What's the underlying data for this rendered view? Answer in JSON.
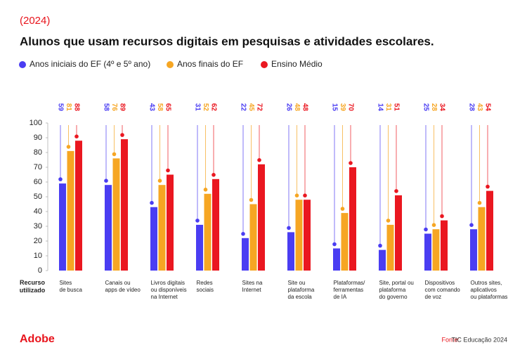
{
  "subtitle": "(2024)",
  "logo": "Adobe",
  "source_label": "Fonte:",
  "source": "TIC Educação 2024",
  "chart_data": {
    "type": "bar",
    "title": "Alunos que usam recursos digitais em pesquisas e atividades escolares.",
    "x_label": [
      "Recurso",
      "utilizado"
    ],
    "categories": [
      [
        "Sites",
        "de busca"
      ],
      [
        "Canais ou",
        "apps de vídeo"
      ],
      [
        "Livros digitais",
        "ou disponíveis",
        "na Internet"
      ],
      [
        "Redes",
        "sociais"
      ],
      [
        "Sites na",
        "Internet"
      ],
      [
        "Site ou",
        "plataforma",
        "da escola"
      ],
      [
        "Plataformas/",
        "ferramentas",
        "de IA"
      ],
      [
        "Site, portal ou",
        "plataforma",
        "do governo"
      ],
      [
        "Dispositivos",
        "com comando",
        "de voz"
      ],
      [
        "Outros sites,",
        "aplicativos",
        "ou plataformas"
      ]
    ],
    "series": [
      {
        "name": "Anos iniciais do EF (4º e 5º ano)",
        "color": "#4a3df2",
        "values": [
          59,
          58,
          43,
          31,
          22,
          26,
          15,
          14,
          25,
          28
        ]
      },
      {
        "name": "Anos finais do EF",
        "color": "#f6a623",
        "values": [
          81,
          76,
          58,
          52,
          45,
          48,
          39,
          31,
          28,
          43
        ]
      },
      {
        "name": "Ensino Médio",
        "color": "#ea1720",
        "values": [
          88,
          89,
          65,
          62,
          72,
          48,
          70,
          51,
          34,
          54
        ]
      }
    ],
    "ylim": [
      0,
      100
    ],
    "yticks": [
      0,
      10,
      20,
      30,
      40,
      50,
      60,
      70,
      80,
      90,
      100
    ]
  }
}
